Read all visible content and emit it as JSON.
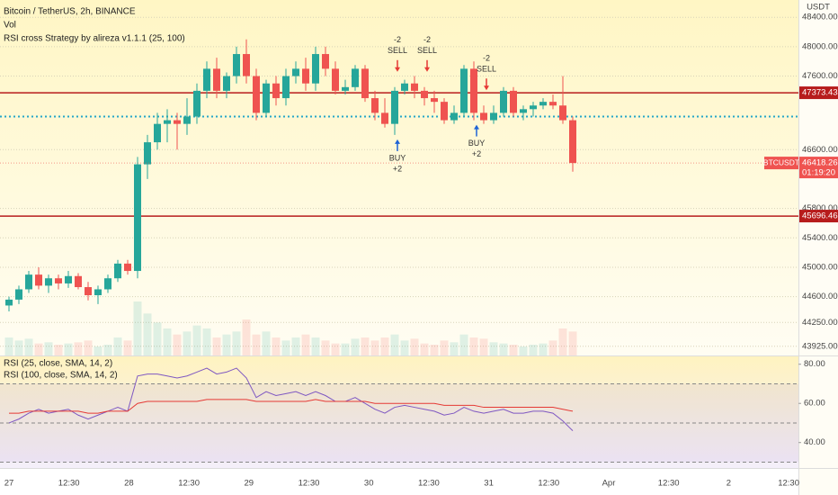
{
  "chart_data": {
    "type": "candlestick",
    "title": "Bitcoin / TetherUS, 2h, BINANCE",
    "volume_label": "Vol",
    "strategy_label": "RSI cross Strategy by alireza v1.1.1 (25, 100)",
    "currency": "USDT",
    "symbol": "BTCUSDT",
    "last_price": {
      "value": 46418.26,
      "label": "46418.26"
    },
    "countdown": "01:19:20",
    "levels": [
      {
        "value": 47373.43,
        "label": "47373.43",
        "color": "#b71c1c"
      },
      {
        "value": 45696.46,
        "label": "45696.46",
        "color": "#b71c1c"
      }
    ],
    "avg_line": 47050,
    "ylim": [
      43800,
      48635
    ],
    "yticks": [
      {
        "value": 48400,
        "label": "48400.00"
      },
      {
        "value": 48000,
        "label": "48000.00"
      },
      {
        "value": 47600,
        "label": "47600.00"
      },
      {
        "value": 46600,
        "label": "46600.00"
      },
      {
        "value": 45800,
        "label": "45800.00"
      },
      {
        "value": 45400,
        "label": "45400.00"
      },
      {
        "value": 45000,
        "label": "45000.00"
      },
      {
        "value": 44600,
        "label": "44600.00"
      },
      {
        "value": 44250,
        "label": "44250.00"
      },
      {
        "value": 43925,
        "label": "43925.00"
      }
    ],
    "x_labels": [
      "27",
      "12:30",
      "28",
      "12:30",
      "29",
      "12:30",
      "30",
      "12:30",
      "31",
      "12:30",
      "Apr",
      "12:30",
      "2",
      "12:30"
    ],
    "up_color": "#26a69a",
    "down_color": "#ef5350",
    "candles": [
      [
        44480,
        44600,
        44400,
        44560
      ],
      [
        44560,
        44750,
        44500,
        44700
      ],
      [
        44700,
        44950,
        44650,
        44900
      ],
      [
        44900,
        45000,
        44700,
        44750
      ],
      [
        44750,
        44900,
        44650,
        44850
      ],
      [
        44850,
        44900,
        44700,
        44780
      ],
      [
        44780,
        44950,
        44720,
        44880
      ],
      [
        44880,
        44920,
        44700,
        44730
      ],
      [
        44730,
        44800,
        44550,
        44620
      ],
      [
        44620,
        44750,
        44500,
        44700
      ],
      [
        44700,
        44900,
        44650,
        44850
      ],
      [
        44850,
        45100,
        44800,
        45050
      ],
      [
        45050,
        45100,
        44900,
        44950
      ],
      [
        44950,
        46500,
        44850,
        46400
      ],
      [
        46400,
        46800,
        46200,
        46700
      ],
      [
        46700,
        47100,
        46600,
        46950
      ],
      [
        46950,
        47150,
        46700,
        47000
      ],
      [
        47000,
        47100,
        46600,
        46950
      ],
      [
        46950,
        47300,
        46800,
        47050
      ],
      [
        47050,
        47500,
        46950,
        47400
      ],
      [
        47400,
        47800,
        47300,
        47700
      ],
      [
        47700,
        47850,
        47300,
        47400
      ],
      [
        47400,
        47650,
        47300,
        47600
      ],
      [
        47600,
        48000,
        47500,
        47900
      ],
      [
        47900,
        48100,
        47500,
        47600
      ],
      [
        47600,
        47700,
        47000,
        47100
      ],
      [
        47100,
        47550,
        47050,
        47500
      ],
      [
        47500,
        47600,
        47200,
        47300
      ],
      [
        47300,
        47700,
        47200,
        47600
      ],
      [
        47600,
        47800,
        47500,
        47700
      ],
      [
        47700,
        47850,
        47400,
        47500
      ],
      [
        47500,
        48000,
        47400,
        47900
      ],
      [
        47900,
        48000,
        47600,
        47700
      ],
      [
        47700,
        47800,
        47350,
        47400
      ],
      [
        47400,
        47550,
        47350,
        47450
      ],
      [
        47450,
        47750,
        47400,
        47700
      ],
      [
        47700,
        47750,
        47250,
        47300
      ],
      [
        47300,
        47400,
        47000,
        47100
      ],
      [
        47100,
        47300,
        46900,
        46950
      ],
      [
        46950,
        47450,
        46800,
        47400
      ],
      [
        47400,
        47550,
        47350,
        47500
      ],
      [
        47500,
        47600,
        47300,
        47400
      ],
      [
        47400,
        47450,
        47200,
        47300
      ],
      [
        47300,
        47400,
        47100,
        47250
      ],
      [
        47250,
        47300,
        46950,
        47000
      ],
      [
        47000,
        47200,
        46950,
        47100
      ],
      [
        47100,
        47750,
        47050,
        47700
      ],
      [
        47700,
        47800,
        47000,
        47100
      ],
      [
        47100,
        47200,
        46950,
        47000
      ],
      [
        47000,
        47200,
        46950,
        47100
      ],
      [
        47100,
        47450,
        47050,
        47400
      ],
      [
        47400,
        47450,
        47050,
        47100
      ],
      [
        47100,
        47200,
        47000,
        47150
      ],
      [
        47150,
        47250,
        47050,
        47200
      ],
      [
        47200,
        47300,
        47150,
        47250
      ],
      [
        47250,
        47350,
        47150,
        47200
      ],
      [
        47200,
        47600,
        46950,
        47000
      ],
      [
        47000,
        47050,
        46300,
        46418.26
      ]
    ],
    "volume_ylim": [
      0,
      150
    ],
    "volume": [
      30,
      25,
      28,
      20,
      22,
      18,
      20,
      22,
      25,
      15,
      18,
      30,
      25,
      90,
      70,
      55,
      45,
      35,
      40,
      50,
      45,
      30,
      35,
      40,
      60,
      35,
      40,
      30,
      25,
      30,
      35,
      30,
      25,
      20,
      20,
      28,
      30,
      25,
      30,
      35,
      25,
      28,
      20,
      18,
      25,
      22,
      35,
      30,
      28,
      22,
      20,
      18,
      15,
      18,
      20,
      25,
      45,
      40
    ],
    "signals": [
      {
        "index": 39,
        "side": "SELL",
        "qty": "-2"
      },
      {
        "index": 39,
        "side": "BUY",
        "qty": "+2"
      },
      {
        "index": 42,
        "side": "SELL",
        "qty": "-2"
      },
      {
        "index": 47,
        "side": "BUY",
        "qty": "+2"
      },
      {
        "index": 48,
        "side": "SELL",
        "qty": "-2"
      }
    ],
    "rsi": {
      "ylim": [
        27,
        84
      ],
      "yticks": [
        {
          "value": 80,
          "label": "80.00"
        },
        {
          "value": 60,
          "label": "60.00"
        },
        {
          "value": 40,
          "label": "40.00"
        }
      ],
      "bands": [
        70,
        50,
        30
      ],
      "series": [
        {
          "name": "RSI (25, close, SMA, 14, 2)",
          "color": "#7e57c2",
          "values": [
            50,
            52,
            55,
            57,
            55,
            56,
            57,
            54,
            52,
            54,
            56,
            58,
            56,
            74,
            75,
            75,
            74,
            73,
            74,
            76,
            78,
            75,
            76,
            78,
            73,
            63,
            66,
            64,
            65,
            66,
            64,
            66,
            64,
            61,
            61,
            63,
            60,
            57,
            55,
            58,
            59,
            58,
            57,
            56,
            54,
            55,
            58,
            56,
            55,
            56,
            57,
            55,
            55,
            56,
            56,
            55,
            51,
            46
          ]
        },
        {
          "name": "RSI (100, close, SMA, 14, 2)",
          "color": "#e53935",
          "values": [
            55,
            55,
            56,
            56,
            56,
            56,
            56,
            56,
            55,
            55,
            56,
            56,
            56,
            60,
            61,
            61,
            61,
            61,
            61,
            61,
            62,
            62,
            62,
            62,
            62,
            61,
            61,
            61,
            61,
            61,
            61,
            62,
            61,
            61,
            61,
            61,
            61,
            60,
            60,
            60,
            60,
            60,
            60,
            60,
            59,
            59,
            59,
            59,
            58,
            58,
            58,
            58,
            58,
            58,
            58,
            58,
            57,
            56
          ]
        }
      ]
    }
  }
}
